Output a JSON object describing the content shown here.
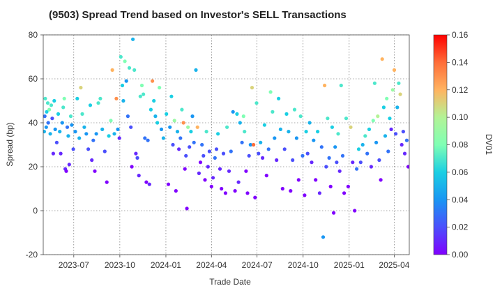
{
  "chart_data": {
    "type": "scatter",
    "title": "(9503)   Spread Trend based on Investor's SELL Transactions",
    "xlabel": "Trade Date",
    "ylabel": "Spread (bp)",
    "ylim": [
      -20,
      80
    ],
    "yticks": [
      -20,
      0,
      20,
      40,
      60,
      80
    ],
    "xlim": [
      "2023-05-01",
      "2025-05-01"
    ],
    "xticks": [
      "2023-07",
      "2023-10",
      "2024-01",
      "2024-04",
      "2024-07",
      "2024-10",
      "2025-01",
      "2025-04"
    ],
    "grid": true,
    "colorbar": {
      "label": "DV01",
      "colormap": "rainbow",
      "range": [
        0,
        0.16
      ],
      "ticks": [
        "0.00",
        "0.02",
        "0.04",
        "0.06",
        "0.08",
        "0.10",
        "0.12",
        "0.14",
        "0.16"
      ]
    },
    "points": [
      {
        "x": "2023-05-03",
        "y": 36,
        "c": 0.05
      },
      {
        "x": "2023-05-04",
        "y": 43,
        "c": 0.03
      },
      {
        "x": "2023-05-05",
        "y": 51,
        "c": 0.07
      },
      {
        "x": "2023-05-07",
        "y": 38,
        "c": 0.04
      },
      {
        "x": "2023-05-08",
        "y": 45,
        "c": 0.06
      },
      {
        "x": "2023-05-10",
        "y": 49,
        "c": 0.07
      },
      {
        "x": "2023-05-11",
        "y": 40,
        "c": 0.03
      },
      {
        "x": "2023-05-13",
        "y": 46,
        "c": 0.08
      },
      {
        "x": "2023-05-15",
        "y": 35,
        "c": 0.05
      },
      {
        "x": "2023-05-17",
        "y": 48,
        "c": 0.07
      },
      {
        "x": "2023-05-19",
        "y": 42,
        "c": 0.02
      },
      {
        "x": "2023-05-21",
        "y": 26,
        "c": 0.01
      },
      {
        "x": "2023-05-23",
        "y": 50,
        "c": 0.06
      },
      {
        "x": "2023-05-25",
        "y": 37,
        "c": 0.04
      },
      {
        "x": "2023-05-28",
        "y": 31,
        "c": 0.02
      },
      {
        "x": "2023-05-31",
        "y": 44,
        "c": 0.06
      },
      {
        "x": "2023-06-03",
        "y": 36,
        "c": 0.05
      },
      {
        "x": "2023-06-05",
        "y": 26,
        "c": 0.01
      },
      {
        "x": "2023-06-08",
        "y": 40,
        "c": 0.04
      },
      {
        "x": "2023-06-10",
        "y": 47,
        "c": 0.07
      },
      {
        "x": "2023-06-12",
        "y": 51,
        "c": 0.08
      },
      {
        "x": "2023-06-14",
        "y": 19,
        "c": 0.01
      },
      {
        "x": "2023-06-16",
        "y": 18,
        "c": 0.0
      },
      {
        "x": "2023-06-18",
        "y": 38,
        "c": 0.03
      },
      {
        "x": "2023-06-20",
        "y": 34,
        "c": 0.05
      },
      {
        "x": "2023-06-22",
        "y": 21,
        "c": 0.01
      },
      {
        "x": "2023-06-25",
        "y": 43,
        "c": 0.07
      },
      {
        "x": "2023-06-27",
        "y": 39,
        "c": 0.04
      },
      {
        "x": "2023-06-30",
        "y": 28,
        "c": 0.02
      },
      {
        "x": "2023-07-04",
        "y": 36,
        "c": 0.04
      },
      {
        "x": "2023-07-08",
        "y": 51,
        "c": 0.06
      },
      {
        "x": "2023-07-12",
        "y": 33,
        "c": 0.05
      },
      {
        "x": "2023-07-15",
        "y": 56,
        "c": 0.11
      },
      {
        "x": "2023-07-18",
        "y": 44,
        "c": 0.07
      },
      {
        "x": "2023-07-22",
        "y": 38,
        "c": 0.05
      },
      {
        "x": "2023-07-26",
        "y": 35,
        "c": 0.04
      },
      {
        "x": "2023-07-30",
        "y": 28,
        "c": 0.02
      },
      {
        "x": "2023-08-03",
        "y": 48,
        "c": 0.06
      },
      {
        "x": "2023-08-06",
        "y": 23,
        "c": 0.01
      },
      {
        "x": "2023-08-09",
        "y": 32,
        "c": 0.03
      },
      {
        "x": "2023-08-12",
        "y": 18,
        "c": 0.0
      },
      {
        "x": "2023-08-15",
        "y": 35,
        "c": 0.04
      },
      {
        "x": "2023-08-19",
        "y": 49,
        "c": 0.07
      },
      {
        "x": "2023-08-23",
        "y": 51,
        "c": 0.07
      },
      {
        "x": "2023-08-27",
        "y": 37,
        "c": 0.05
      },
      {
        "x": "2023-09-01",
        "y": 27,
        "c": 0.02
      },
      {
        "x": "2023-09-05",
        "y": 13,
        "c": 0.0
      },
      {
        "x": "2023-09-09",
        "y": 34,
        "c": 0.06
      },
      {
        "x": "2023-09-13",
        "y": 41,
        "c": 0.08
      },
      {
        "x": "2023-09-16",
        "y": 64,
        "c": 0.12
      },
      {
        "x": "2023-09-20",
        "y": 35,
        "c": 0.05
      },
      {
        "x": "2023-09-24",
        "y": 51,
        "c": 0.13
      },
      {
        "x": "2023-09-27",
        "y": 37,
        "c": 0.04
      },
      {
        "x": "2023-09-30",
        "y": 33,
        "c": 0.01
      },
      {
        "x": "2023-10-03",
        "y": 70,
        "c": 0.07
      },
      {
        "x": "2023-10-06",
        "y": 57,
        "c": 0.06
      },
      {
        "x": "2023-10-08",
        "y": 50,
        "c": 0.05
      },
      {
        "x": "2023-10-11",
        "y": 68,
        "c": 0.08
      },
      {
        "x": "2023-10-14",
        "y": 59,
        "c": 0.04
      },
      {
        "x": "2023-10-17",
        "y": 43,
        "c": 0.03
      },
      {
        "x": "2023-10-20",
        "y": 65,
        "c": 0.07
      },
      {
        "x": "2023-10-23",
        "y": 38,
        "c": 0.02
      },
      {
        "x": "2023-10-25",
        "y": 20,
        "c": 0.0
      },
      {
        "x": "2023-10-27",
        "y": 78,
        "c": 0.05
      },
      {
        "x": "2023-10-30",
        "y": 64,
        "c": 0.07
      },
      {
        "x": "2023-11-02",
        "y": 26,
        "c": 0.01
      },
      {
        "x": "2023-11-05",
        "y": 24,
        "c": 0.02
      },
      {
        "x": "2023-11-08",
        "y": 16,
        "c": 0.01
      },
      {
        "x": "2023-11-11",
        "y": 52,
        "c": 0.07
      },
      {
        "x": "2023-11-14",
        "y": 57,
        "c": 0.08
      },
      {
        "x": "2023-11-17",
        "y": 53,
        "c": 0.07
      },
      {
        "x": "2023-11-20",
        "y": 33,
        "c": 0.03
      },
      {
        "x": "2023-11-23",
        "y": 13,
        "c": 0.0
      },
      {
        "x": "2023-11-26",
        "y": 32,
        "c": 0.03
      },
      {
        "x": "2023-11-29",
        "y": 12,
        "c": 0.01
      },
      {
        "x": "2023-12-02",
        "y": 46,
        "c": 0.06
      },
      {
        "x": "2023-12-05",
        "y": 59,
        "c": 0.13
      },
      {
        "x": "2023-12-08",
        "y": 50,
        "c": 0.06
      },
      {
        "x": "2023-12-11",
        "y": 43,
        "c": 0.05
      },
      {
        "x": "2023-12-15",
        "y": 40,
        "c": 0.06
      },
      {
        "x": "2023-12-19",
        "y": 56,
        "c": 0.08
      },
      {
        "x": "2023-12-23",
        "y": 37,
        "c": 0.04
      },
      {
        "x": "2023-12-27",
        "y": 33,
        "c": 0.05
      },
      {
        "x": "2024-01-02",
        "y": 44,
        "c": 0.06
      },
      {
        "x": "2024-01-06",
        "y": 12,
        "c": 0.0
      },
      {
        "x": "2024-01-09",
        "y": 38,
        "c": 0.04
      },
      {
        "x": "2024-01-12",
        "y": 52,
        "c": 0.06
      },
      {
        "x": "2024-01-15",
        "y": 30,
        "c": 0.02
      },
      {
        "x": "2024-01-18",
        "y": 41,
        "c": 0.09
      },
      {
        "x": "2024-01-21",
        "y": 9,
        "c": 0.0
      },
      {
        "x": "2024-01-24",
        "y": 36,
        "c": 0.05
      },
      {
        "x": "2024-01-27",
        "y": 28,
        "c": 0.01
      },
      {
        "x": "2024-01-30",
        "y": 33,
        "c": 0.03
      },
      {
        "x": "2024-02-02",
        "y": 46,
        "c": 0.07
      },
      {
        "x": "2024-02-05",
        "y": 40,
        "c": 0.13
      },
      {
        "x": "2024-02-08",
        "y": 19,
        "c": 0.0
      },
      {
        "x": "2024-02-10",
        "y": 25,
        "c": 0.02
      },
      {
        "x": "2024-02-12",
        "y": 1,
        "c": 0.0
      },
      {
        "x": "2024-02-14",
        "y": 38,
        "c": 0.09
      },
      {
        "x": "2024-02-17",
        "y": 29,
        "c": 0.02
      },
      {
        "x": "2024-02-20",
        "y": 36,
        "c": 0.06
      },
      {
        "x": "2024-02-23",
        "y": 43,
        "c": 0.04
      },
      {
        "x": "2024-02-26",
        "y": 31,
        "c": 0.03
      },
      {
        "x": "2024-03-01",
        "y": 64,
        "c": 0.05
      },
      {
        "x": "2024-03-04",
        "y": 38,
        "c": 0.12
      },
      {
        "x": "2024-03-07",
        "y": 17,
        "c": 0.01
      },
      {
        "x": "2024-03-10",
        "y": 22,
        "c": 0.0
      },
      {
        "x": "2024-03-13",
        "y": 30,
        "c": 0.03
      },
      {
        "x": "2024-03-16",
        "y": 25,
        "c": 0.02
      },
      {
        "x": "2024-03-19",
        "y": 14,
        "c": 0.0
      },
      {
        "x": "2024-03-22",
        "y": 36,
        "c": 0.07
      },
      {
        "x": "2024-03-25",
        "y": 20,
        "c": 0.01
      },
      {
        "x": "2024-03-28",
        "y": 27,
        "c": 0.02
      },
      {
        "x": "2024-04-01",
        "y": 11,
        "c": 0.0
      },
      {
        "x": "2024-04-04",
        "y": 15,
        "c": 0.01
      },
      {
        "x": "2024-04-08",
        "y": 24,
        "c": 0.03
      },
      {
        "x": "2024-04-11",
        "y": 28,
        "c": 0.02
      },
      {
        "x": "2024-04-14",
        "y": 35,
        "c": 0.06
      },
      {
        "x": "2024-04-18",
        "y": 19,
        "c": 0.01
      },
      {
        "x": "2024-04-21",
        "y": 10,
        "c": 0.0
      },
      {
        "x": "2024-04-25",
        "y": 26,
        "c": 0.02
      },
      {
        "x": "2024-04-29",
        "y": 8,
        "c": 0.0
      },
      {
        "x": "2024-05-02",
        "y": 38,
        "c": 0.07
      },
      {
        "x": "2024-05-06",
        "y": 18,
        "c": 0.01
      },
      {
        "x": "2024-05-10",
        "y": 27,
        "c": 0.03
      },
      {
        "x": "2024-05-14",
        "y": 45,
        "c": 0.04
      },
      {
        "x": "2024-05-18",
        "y": 9,
        "c": 0.0
      },
      {
        "x": "2024-05-22",
        "y": 44,
        "c": 0.06
      },
      {
        "x": "2024-05-25",
        "y": 13,
        "c": 0.01
      },
      {
        "x": "2024-05-28",
        "y": 40,
        "c": 0.05
      },
      {
        "x": "2024-06-01",
        "y": 31,
        "c": 0.03
      },
      {
        "x": "2024-06-04",
        "y": 43,
        "c": 0.08
      },
      {
        "x": "2024-06-06",
        "y": 36,
        "c": 0.07
      },
      {
        "x": "2024-06-09",
        "y": 18,
        "c": 0.0
      },
      {
        "x": "2024-06-12",
        "y": 8,
        "c": 0.0
      },
      {
        "x": "2024-06-15",
        "y": 25,
        "c": 0.02
      },
      {
        "x": "2024-06-18",
        "y": 30,
        "c": 0.04
      },
      {
        "x": "2024-06-21",
        "y": 56,
        "c": 0.11
      },
      {
        "x": "2024-06-24",
        "y": 30,
        "c": 0.14
      },
      {
        "x": "2024-06-27",
        "y": 6,
        "c": 0.0
      },
      {
        "x": "2024-06-30",
        "y": 49,
        "c": 0.07
      },
      {
        "x": "2024-07-04",
        "y": 26,
        "c": 0.02
      },
      {
        "x": "2024-07-08",
        "y": 31,
        "c": 0.05
      },
      {
        "x": "2024-07-12",
        "y": 24,
        "c": 0.01
      },
      {
        "x": "2024-07-16",
        "y": 39,
        "c": 0.06
      },
      {
        "x": "2024-07-20",
        "y": 16,
        "c": 0.0
      },
      {
        "x": "2024-07-24",
        "y": 28,
        "c": 0.03
      },
      {
        "x": "2024-07-28",
        "y": 54,
        "c": 0.08
      },
      {
        "x": "2024-08-01",
        "y": 45,
        "c": 0.07
      },
      {
        "x": "2024-08-05",
        "y": 33,
        "c": 0.04
      },
      {
        "x": "2024-08-09",
        "y": 23,
        "c": 0.01
      },
      {
        "x": "2024-08-13",
        "y": 51,
        "c": 0.06
      },
      {
        "x": "2024-08-17",
        "y": 37,
        "c": 0.05
      },
      {
        "x": "2024-08-21",
        "y": 10,
        "c": 0.0
      },
      {
        "x": "2024-08-25",
        "y": 28,
        "c": 0.02
      },
      {
        "x": "2024-08-29",
        "y": 44,
        "c": 0.06
      },
      {
        "x": "2024-09-02",
        "y": 36,
        "c": 0.05
      },
      {
        "x": "2024-09-06",
        "y": 9,
        "c": 0.0
      },
      {
        "x": "2024-09-10",
        "y": 23,
        "c": 0.02
      },
      {
        "x": "2024-09-14",
        "y": 46,
        "c": 0.07
      },
      {
        "x": "2024-09-18",
        "y": 33,
        "c": 0.04
      },
      {
        "x": "2024-09-22",
        "y": 14,
        "c": 0.0
      },
      {
        "x": "2024-09-26",
        "y": 43,
        "c": 0.07
      },
      {
        "x": "2024-09-30",
        "y": 25,
        "c": 0.03
      },
      {
        "x": "2024-10-04",
        "y": 7,
        "c": 0.0
      },
      {
        "x": "2024-10-07",
        "y": 36,
        "c": 0.06
      },
      {
        "x": "2024-10-10",
        "y": 26,
        "c": 0.02
      },
      {
        "x": "2024-10-14",
        "y": 40,
        "c": 0.05
      },
      {
        "x": "2024-10-18",
        "y": 22,
        "c": 0.01
      },
      {
        "x": "2024-10-22",
        "y": 32,
        "c": 0.04
      },
      {
        "x": "2024-10-26",
        "y": 14,
        "c": 0.0
      },
      {
        "x": "2024-10-30",
        "y": 36,
        "c": 0.06
      },
      {
        "x": "2024-11-03",
        "y": 8,
        "c": 0.01
      },
      {
        "x": "2024-11-07",
        "y": 29,
        "c": 0.03
      },
      {
        "x": "2024-11-10",
        "y": -12,
        "c": 0.04
      },
      {
        "x": "2024-11-13",
        "y": 57,
        "c": 0.12
      },
      {
        "x": "2024-11-16",
        "y": 20,
        "c": 0.02
      },
      {
        "x": "2024-11-19",
        "y": 42,
        "c": 0.07
      },
      {
        "x": "2024-11-22",
        "y": 24,
        "c": 0.03
      },
      {
        "x": "2024-11-25",
        "y": 11,
        "c": 0.0
      },
      {
        "x": "2024-11-28",
        "y": 38,
        "c": 0.06
      },
      {
        "x": "2024-12-01",
        "y": -1,
        "c": 0.0
      },
      {
        "x": "2024-12-04",
        "y": 29,
        "c": 0.04
      },
      {
        "x": "2024-12-07",
        "y": 22,
        "c": 0.02
      },
      {
        "x": "2024-12-10",
        "y": 35,
        "c": 0.07
      },
      {
        "x": "2024-12-13",
        "y": 18,
        "c": 0.01
      },
      {
        "x": "2024-12-16",
        "y": 57,
        "c": 0.07
      },
      {
        "x": "2024-12-19",
        "y": 25,
        "c": 0.03
      },
      {
        "x": "2024-12-22",
        "y": 8,
        "c": 0.0
      },
      {
        "x": "2024-12-26",
        "y": 42,
        "c": 0.07
      },
      {
        "x": "2024-12-30",
        "y": 11,
        "c": 0.0
      },
      {
        "x": "2025-01-04",
        "y": 38,
        "c": 0.11
      },
      {
        "x": "2025-01-08",
        "y": 22,
        "c": 0.01
      },
      {
        "x": "2025-01-12",
        "y": 0,
        "c": 0.0
      },
      {
        "x": "2025-01-16",
        "y": 19,
        "c": 0.03
      },
      {
        "x": "2025-01-20",
        "y": 28,
        "c": 0.06
      },
      {
        "x": "2025-01-24",
        "y": 22,
        "c": 0.02
      },
      {
        "x": "2025-01-28",
        "y": 30,
        "c": 0.05
      },
      {
        "x": "2025-02-02",
        "y": 34,
        "c": 0.07
      },
      {
        "x": "2025-02-06",
        "y": 26,
        "c": 0.03
      },
      {
        "x": "2025-02-10",
        "y": 37,
        "c": 0.06
      },
      {
        "x": "2025-02-14",
        "y": 20,
        "c": 0.01
      },
      {
        "x": "2025-02-18",
        "y": 41,
        "c": 0.08
      },
      {
        "x": "2025-02-21",
        "y": 58,
        "c": 0.07
      },
      {
        "x": "2025-02-24",
        "y": 31,
        "c": 0.04
      },
      {
        "x": "2025-02-27",
        "y": 43,
        "c": 0.1
      },
      {
        "x": "2025-03-02",
        "y": 23,
        "c": 0.02
      },
      {
        "x": "2025-03-05",
        "y": 14,
        "c": 0.0
      },
      {
        "x": "2025-03-08",
        "y": 69,
        "c": 0.12
      },
      {
        "x": "2025-03-11",
        "y": 47,
        "c": 0.06
      },
      {
        "x": "2025-03-14",
        "y": 34,
        "c": 0.05
      },
      {
        "x": "2025-03-17",
        "y": 51,
        "c": 0.08
      },
      {
        "x": "2025-03-20",
        "y": 27,
        "c": 0.03
      },
      {
        "x": "2025-03-23",
        "y": 42,
        "c": 0.06
      },
      {
        "x": "2025-03-26",
        "y": 37,
        "c": 0.01
      },
      {
        "x": "2025-03-29",
        "y": 55,
        "c": 0.09
      },
      {
        "x": "2025-04-01",
        "y": 64,
        "c": 0.12
      },
      {
        "x": "2025-04-04",
        "y": 35,
        "c": 0.02
      },
      {
        "x": "2025-04-07",
        "y": 47,
        "c": 0.05
      },
      {
        "x": "2025-04-10",
        "y": 58,
        "c": 0.07
      },
      {
        "x": "2025-04-13",
        "y": 53,
        "c": 0.11
      },
      {
        "x": "2025-04-16",
        "y": 30,
        "c": 0.01
      },
      {
        "x": "2025-04-19",
        "y": 36,
        "c": 0.02
      },
      {
        "x": "2025-04-22",
        "y": 26,
        "c": 0.01
      },
      {
        "x": "2025-04-26",
        "y": 32,
        "c": 0.03
      },
      {
        "x": "2025-04-29",
        "y": 20,
        "c": 0.0
      }
    ]
  }
}
